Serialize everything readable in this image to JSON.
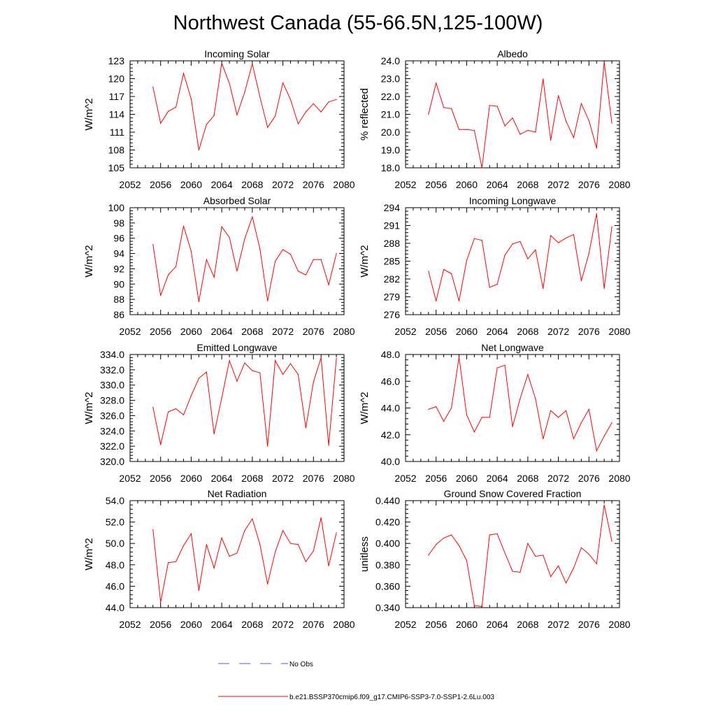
{
  "figure": {
    "title": "Northwest Canada (55-66.5N,125-100W)",
    "series_color": "#ff0000",
    "no_obs_color": "#5a5acd"
  },
  "legend": {
    "no_obs_label": "No Obs",
    "model_label": "b.e21.BSSP370cmip6.f09_g17.CMIP6-SSP3-7.0-SSP1-2.6Lu.003"
  },
  "chart_data": [
    {
      "type": "line",
      "title": "Incoming Solar",
      "ylabel": "W/m^2",
      "xlim": [
        2052,
        2080
      ],
      "ylim": [
        105,
        123
      ],
      "xticks": [
        "2052",
        "2056",
        "2060",
        "2064",
        "2068",
        "2072",
        "2076",
        "2080"
      ],
      "yticks": [
        "105",
        "108",
        "111",
        "114",
        "117",
        "120",
        "123"
      ],
      "x": [
        2055,
        2056,
        2057,
        2058,
        2059,
        2060,
        2061,
        2062,
        2063,
        2064,
        2065,
        2066,
        2067,
        2068,
        2069,
        2070,
        2071,
        2072,
        2073,
        2074,
        2075,
        2076,
        2077,
        2078,
        2079
      ],
      "series": [
        {
          "values": [
            118.6,
            112.5,
            114.5,
            115.2,
            120.9,
            116.6,
            108.0,
            112.3,
            113.8,
            122.6,
            119.2,
            113.9,
            117.7,
            122.5,
            116.9,
            111.8,
            113.7,
            119.3,
            116.5,
            112.4,
            114.4,
            115.8,
            114.4,
            116.1,
            116.5
          ]
        }
      ]
    },
    {
      "type": "line",
      "title": "Albedo",
      "ylabel": "% reflected",
      "xlim": [
        2052,
        2080
      ],
      "ylim": [
        18.0,
        24.0
      ],
      "xticks": [
        "2052",
        "2056",
        "2060",
        "2064",
        "2068",
        "2072",
        "2076",
        "2080"
      ],
      "yticks": [
        "18.0",
        "19.0",
        "20.0",
        "21.0",
        "22.0",
        "23.0",
        "24.0"
      ],
      "x": [
        2055,
        2056,
        2057,
        2058,
        2059,
        2060,
        2061,
        2062,
        2063,
        2064,
        2065,
        2066,
        2067,
        2068,
        2069,
        2070,
        2071,
        2072,
        2073,
        2074,
        2075,
        2076,
        2077,
        2078,
        2079
      ],
      "series": [
        {
          "values": [
            21.0,
            22.75,
            21.38,
            21.32,
            20.15,
            20.15,
            20.1,
            18.0,
            21.5,
            21.45,
            20.35,
            20.8,
            19.88,
            20.1,
            20.0,
            22.98,
            19.55,
            22.05,
            20.62,
            19.7,
            21.6,
            20.65,
            19.1,
            23.95,
            20.5
          ]
        }
      ]
    },
    {
      "type": "line",
      "title": "Absorbed Solar",
      "ylabel": "W/m^2",
      "xlim": [
        2052,
        2080
      ],
      "ylim": [
        86,
        100
      ],
      "xticks": [
        "2052",
        "2056",
        "2060",
        "2064",
        "2068",
        "2072",
        "2076",
        "2080"
      ],
      "yticks": [
        "86",
        "88",
        "90",
        "92",
        "94",
        "96",
        "98",
        "100"
      ],
      "x": [
        2055,
        2056,
        2057,
        2058,
        2059,
        2060,
        2061,
        2062,
        2063,
        2064,
        2065,
        2066,
        2067,
        2068,
        2069,
        2070,
        2071,
        2072,
        2073,
        2074,
        2075,
        2076,
        2077,
        2078,
        2079
      ],
      "series": [
        {
          "values": [
            95.2,
            88.5,
            91.2,
            92.3,
            97.6,
            94.3,
            87.7,
            93.2,
            90.9,
            97.5,
            96.1,
            91.7,
            95.9,
            98.8,
            94.6,
            87.8,
            93.0,
            94.5,
            93.9,
            91.7,
            91.2,
            93.2,
            93.2,
            89.9,
            94.0
          ]
        }
      ]
    },
    {
      "type": "line",
      "title": "Incoming Longwave",
      "ylabel": "W/m^2",
      "xlim": [
        2052,
        2080
      ],
      "ylim": [
        276,
        294
      ],
      "xticks": [
        "2052",
        "2056",
        "2060",
        "2064",
        "2068",
        "2072",
        "2076",
        "2080"
      ],
      "yticks": [
        "276",
        "279",
        "282",
        "285",
        "288",
        "291",
        "294"
      ],
      "x": [
        2055,
        2056,
        2057,
        2058,
        2059,
        2060,
        2061,
        2062,
        2063,
        2064,
        2065,
        2066,
        2067,
        2068,
        2069,
        2070,
        2071,
        2072,
        2073,
        2074,
        2075,
        2076,
        2077,
        2078,
        2079
      ],
      "series": [
        {
          "values": [
            283.3,
            278.3,
            283.6,
            282.9,
            278.3,
            285.1,
            288.8,
            288.5,
            280.6,
            281.1,
            286.0,
            287.9,
            288.3,
            285.4,
            286.9,
            280.4,
            289.3,
            288.1,
            288.9,
            289.5,
            281.7,
            286.3,
            293.0,
            280.4,
            290.8
          ]
        }
      ]
    },
    {
      "type": "line",
      "title": "Emitted Longwave",
      "ylabel": "W/m^2",
      "xlim": [
        2052,
        2080
      ],
      "ylim": [
        320.0,
        334.0
      ],
      "xticks": [
        "2052",
        "2056",
        "2060",
        "2064",
        "2068",
        "2072",
        "2076",
        "2080"
      ],
      "yticks": [
        "320.0",
        "322.0",
        "324.0",
        "326.0",
        "328.0",
        "330.0",
        "332.0",
        "334.0"
      ],
      "x": [
        2055,
        2056,
        2057,
        2058,
        2059,
        2060,
        2061,
        2062,
        2063,
        2064,
        2065,
        2066,
        2067,
        2068,
        2069,
        2070,
        2071,
        2072,
        2073,
        2074,
        2075,
        2076,
        2077,
        2078,
        2079
      ],
      "series": [
        {
          "values": [
            327.1,
            322.2,
            326.5,
            326.9,
            326.1,
            328.6,
            330.9,
            331.7,
            323.6,
            328.3,
            333.2,
            330.5,
            332.9,
            331.9,
            331.6,
            322.0,
            333.2,
            331.4,
            332.8,
            331.4,
            324.4,
            330.4,
            333.6,
            322.1,
            333.5
          ]
        }
      ]
    },
    {
      "type": "line",
      "title": "Net Longwave",
      "ylabel": "W/m^2",
      "xlim": [
        2052,
        2080
      ],
      "ylim": [
        40.0,
        48.0
      ],
      "xticks": [
        "2052",
        "2056",
        "2060",
        "2064",
        "2068",
        "2072",
        "2076",
        "2080"
      ],
      "yticks": [
        "40.0",
        "42.0",
        "44.0",
        "46.0",
        "48.0"
      ],
      "x": [
        2055,
        2056,
        2057,
        2058,
        2059,
        2060,
        2061,
        2062,
        2063,
        2064,
        2065,
        2066,
        2067,
        2068,
        2069,
        2070,
        2071,
        2072,
        2073,
        2074,
        2075,
        2076,
        2077,
        2078,
        2079
      ],
      "series": [
        {
          "values": [
            43.9,
            44.1,
            43.0,
            44.0,
            47.8,
            43.5,
            42.2,
            43.3,
            43.3,
            47.0,
            47.2,
            42.6,
            44.7,
            46.5,
            44.7,
            41.7,
            43.8,
            43.3,
            43.8,
            41.7,
            42.9,
            43.9,
            40.8,
            41.9,
            42.9
          ]
        }
      ]
    },
    {
      "type": "line",
      "title": "Net Radiation",
      "ylabel": "W/m^2",
      "xlim": [
        2052,
        2080
      ],
      "ylim": [
        44.0,
        54.0
      ],
      "xticks": [
        "2052",
        "2056",
        "2060",
        "2064",
        "2068",
        "2072",
        "2076",
        "2080"
      ],
      "yticks": [
        "44.0",
        "46.0",
        "48.0",
        "50.0",
        "52.0",
        "54.0"
      ],
      "x": [
        2055,
        2056,
        2057,
        2058,
        2059,
        2060,
        2061,
        2062,
        2063,
        2064,
        2065,
        2066,
        2067,
        2068,
        2069,
        2070,
        2071,
        2072,
        2073,
        2074,
        2075,
        2076,
        2077,
        2078,
        2079
      ],
      "series": [
        {
          "values": [
            51.3,
            44.5,
            48.2,
            48.3,
            49.8,
            50.9,
            45.6,
            49.9,
            47.7,
            50.5,
            48.8,
            49.1,
            51.2,
            52.3,
            49.9,
            46.2,
            49.2,
            51.2,
            50.0,
            49.9,
            48.3,
            49.3,
            52.4,
            47.9,
            51.0
          ]
        }
      ]
    },
    {
      "type": "line",
      "title": "Ground Snow Covered Fraction",
      "ylabel": "unitless",
      "xlim": [
        2052,
        2080
      ],
      "ylim": [
        0.34,
        0.44
      ],
      "xticks": [
        "2052",
        "2056",
        "2060",
        "2064",
        "2068",
        "2072",
        "2076",
        "2080"
      ],
      "yticks": [
        "0.340",
        "0.360",
        "0.380",
        "0.400",
        "0.420",
        "0.440"
      ],
      "x": [
        2055,
        2056,
        2057,
        2058,
        2059,
        2060,
        2061,
        2062,
        2063,
        2064,
        2065,
        2066,
        2067,
        2068,
        2069,
        2070,
        2071,
        2072,
        2073,
        2074,
        2075,
        2076,
        2077,
        2078,
        2079
      ],
      "series": [
        {
          "values": [
            0.389,
            0.399,
            0.405,
            0.408,
            0.398,
            0.384,
            0.342,
            0.341,
            0.408,
            0.409,
            0.391,
            0.374,
            0.373,
            0.4,
            0.388,
            0.389,
            0.369,
            0.379,
            0.363,
            0.377,
            0.396,
            0.39,
            0.381,
            0.436,
            0.402
          ]
        }
      ]
    }
  ]
}
